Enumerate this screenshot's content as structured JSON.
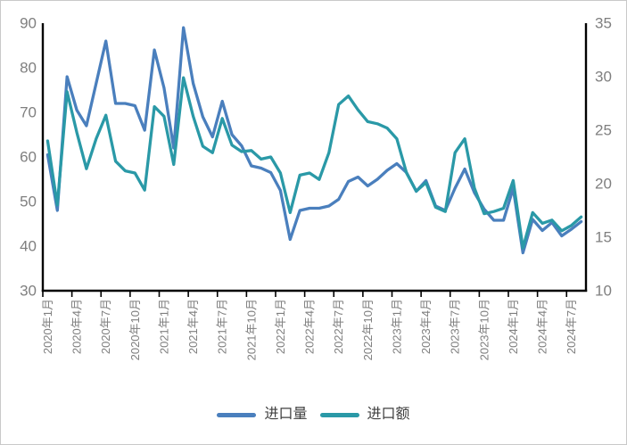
{
  "frame": {
    "background": "#ffffff",
    "border_color": "#c9c9c9"
  },
  "chart_data": {
    "type": "line",
    "title": "",
    "grid": false,
    "legend_position": "bottom",
    "axis_color": "#000000",
    "tick_label_color": "#7f7f7f",
    "legend_text_color": "#404040",
    "x": [
      "2020年1月",
      "2020年2月",
      "2020年3月",
      "2020年4月",
      "2020年5月",
      "2020年6月",
      "2020年7月",
      "2020年8月",
      "2020年9月",
      "2020年10月",
      "2020年11月",
      "2020年12月",
      "2021年1月",
      "2021年2月",
      "2021年3月",
      "2021年4月",
      "2021年5月",
      "2021年6月",
      "2021年7月",
      "2021年8月",
      "2021年9月",
      "2021年10月",
      "2021年11月",
      "2021年12月",
      "2022年1月",
      "2022年2月",
      "2022年3月",
      "2022年4月",
      "2022年5月",
      "2022年6月",
      "2022年7月",
      "2022年8月",
      "2022年9月",
      "2022年10月",
      "2022年11月",
      "2022年12月",
      "2023年1月",
      "2023年2月",
      "2023年3月",
      "2023年4月",
      "2023年5月",
      "2023年6月",
      "2023年7月",
      "2023年8月",
      "2023年9月",
      "2023年10月",
      "2023年11月",
      "2023年12月",
      "2024年1月",
      "2024年2月",
      "2024年3月",
      "2024年4月",
      "2024年5月",
      "2024年6月",
      "2024年7月",
      "2024年8月"
    ],
    "x_tick_labels": [
      "2020年1月",
      "2020年4月",
      "2020年7月",
      "2020年10月",
      "2021年1月",
      "2021年4月",
      "2021年7月",
      "2021年10月",
      "2022年1月",
      "2022年4月",
      "2022年7月",
      "2022年10月",
      "2023年1月",
      "2023年4月",
      "2023年7月",
      "2023年10月",
      "2024年1月",
      "2024年4月",
      "2024年7月"
    ],
    "x_label_every_n_months": 3,
    "y_axis_left": {
      "min": 30,
      "max": 90,
      "ticks": [
        90,
        80,
        70,
        60,
        50,
        40,
        30
      ]
    },
    "y_axis_right": {
      "min": 10,
      "max": 35,
      "ticks": [
        35,
        30,
        25,
        20,
        15,
        10
      ]
    },
    "series": [
      {
        "name": "进口量",
        "axis": "left",
        "color": "#4a7fbd",
        "values": [
          60.5,
          48,
          78,
          70.5,
          67,
          76.5,
          86,
          72,
          72,
          71.5,
          66,
          84,
          75.5,
          62,
          89,
          76.5,
          69,
          64.5,
          72.5,
          65,
          62.5,
          58,
          57.5,
          56.5,
          52.5,
          41.5,
          48,
          48.5,
          48.5,
          49,
          50.5,
          54.5,
          55.5,
          53.5,
          55,
          57,
          58.5,
          56.5,
          52.3,
          54.7,
          49,
          48,
          53,
          57.3,
          52,
          48.3,
          45.8,
          45.8,
          53,
          38.5,
          46,
          43.5,
          45.3,
          42.3,
          43.8,
          45.5
        ]
      },
      {
        "name": "进口额",
        "axis": "right",
        "color": "#2a99a7",
        "values": [
          24,
          18,
          28.6,
          24.8,
          21.4,
          24.2,
          26.4,
          22.1,
          21.2,
          21,
          19.4,
          27.2,
          26.3,
          21.8,
          29.9,
          26.3,
          23.5,
          22.9,
          26.1,
          23.6,
          23,
          23.1,
          22.3,
          22.5,
          21,
          17.3,
          20.8,
          21,
          20.4,
          22.9,
          27.4,
          28.2,
          26.9,
          25.8,
          25.6,
          25.2,
          24.2,
          21,
          19.3,
          20.1,
          17.8,
          17.4,
          22.9,
          24.2,
          19.6,
          17.2,
          17.4,
          17.7,
          20.3,
          14,
          17.3,
          16.3,
          16.6,
          15.6,
          16.1,
          16.9
        ]
      }
    ]
  }
}
